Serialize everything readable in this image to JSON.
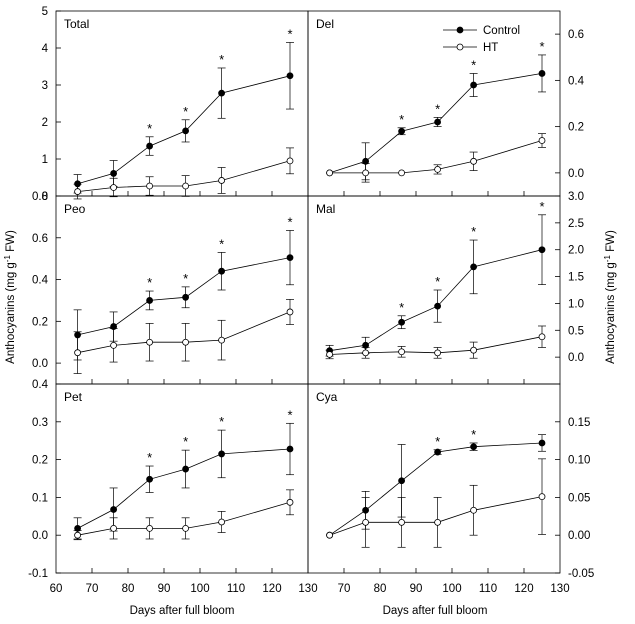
{
  "chart_data": {
    "type": "line",
    "layout": "3x2",
    "xlabel": "Days after full bloom",
    "ylabel_left": "Anthocyanins (mg g-1 FW)",
    "ylabel_right": "Anthocyanins (mg g-1 FW)",
    "ylabel_parts": {
      "main": "Anthocyanins (mg g",
      "sup": "-1",
      "end": " FW)"
    },
    "xlim": [
      60,
      130
    ],
    "xticks": [
      60,
      70,
      80,
      90,
      100,
      110,
      120,
      130
    ],
    "legend": {
      "placement": "top-right of Del panel",
      "entries": [
        {
          "name": "Control",
          "marker": "filled-circle"
        },
        {
          "name": "HT",
          "marker": "open-circle"
        }
      ]
    },
    "x": [
      66,
      76,
      86,
      96,
      106,
      125
    ],
    "panels": [
      {
        "title": "Total",
        "row": 0,
        "col": 0,
        "axis": "left",
        "ylim": [
          0,
          5
        ],
        "yticks": [
          0,
          1,
          2,
          3,
          4,
          5
        ],
        "series": [
          {
            "name": "Control",
            "values": [
              0.33,
              0.61,
              1.35,
              1.76,
              2.78,
              3.25
            ],
            "err": [
              0.25,
              0.35,
              0.25,
              0.3,
              0.68,
              0.9
            ]
          },
          {
            "name": "HT",
            "values": [
              0.12,
              0.23,
              0.27,
              0.27,
              0.42,
              0.95
            ],
            "err": [
              0.2,
              0.25,
              0.25,
              0.28,
              0.35,
              0.35
            ]
          }
        ],
        "significant_x": [
          86,
          96,
          106,
          125
        ]
      },
      {
        "title": "Del",
        "row": 0,
        "col": 1,
        "axis": "right",
        "ylim": [
          -0.1,
          0.7
        ],
        "yticks": [
          0.0,
          0.2,
          0.4,
          0.6
        ],
        "series": [
          {
            "name": "Control",
            "values": [
              0.0,
              0.05,
              0.18,
              0.22,
              0.38,
              0.43
            ],
            "err": [
              0.0,
              0.08,
              0.015,
              0.02,
              0.05,
              0.08
            ]
          },
          {
            "name": "HT",
            "values": [
              0.0,
              0.0,
              0.0,
              0.015,
              0.05,
              0.14
            ],
            "err": [
              0.0,
              0.04,
              0.0,
              0.02,
              0.04,
              0.03
            ]
          }
        ],
        "significant_x": [
          86,
          96,
          106,
          125
        ]
      },
      {
        "title": "Peo",
        "row": 1,
        "col": 0,
        "axis": "left",
        "ylim": [
          -0.1,
          0.8
        ],
        "yticks": [
          0.0,
          0.2,
          0.4,
          0.6,
          0.8
        ],
        "series": [
          {
            "name": "Control",
            "values": [
              0.135,
              0.175,
              0.3,
              0.315,
              0.44,
              0.505
            ],
            "err": [
              0.12,
              0.07,
              0.045,
              0.05,
              0.09,
              0.13
            ]
          },
          {
            "name": "HT",
            "values": [
              0.05,
              0.085,
              0.1,
              0.1,
              0.11,
              0.245
            ],
            "err": [
              0.1,
              0.08,
              0.09,
              0.09,
              0.095,
              0.06
            ]
          }
        ],
        "significant_x": [
          86,
          96,
          106,
          125
        ]
      },
      {
        "title": "Mal",
        "row": 1,
        "col": 1,
        "axis": "right",
        "ylim": [
          -0.5,
          3.0
        ],
        "yticks": [
          0.0,
          0.5,
          1.0,
          1.5,
          2.0,
          2.5,
          3.0
        ],
        "series": [
          {
            "name": "Control",
            "values": [
              0.12,
              0.22,
              0.65,
              0.95,
              1.68,
              2.0
            ],
            "err": [
              0.1,
              0.15,
              0.12,
              0.3,
              0.5,
              0.65
            ]
          },
          {
            "name": "HT",
            "values": [
              0.05,
              0.08,
              0.1,
              0.08,
              0.13,
              0.38
            ],
            "err": [
              0.08,
              0.1,
              0.1,
              0.1,
              0.15,
              0.2
            ]
          }
        ],
        "significant_x": [
          86,
          96,
          106,
          125
        ]
      },
      {
        "title": "Pet",
        "row": 2,
        "col": 0,
        "axis": "left",
        "ylim": [
          -0.1,
          0.4
        ],
        "yticks": [
          -0.1,
          0.0,
          0.1,
          0.2,
          0.3,
          0.4
        ],
        "series": [
          {
            "name": "Control",
            "values": [
              0.018,
              0.068,
              0.148,
              0.175,
              0.215,
              0.228
            ],
            "err": [
              0.028,
              0.057,
              0.035,
              0.05,
              0.063,
              0.068
            ]
          },
          {
            "name": "HT",
            "values": [
              0.0,
              0.018,
              0.018,
              0.018,
              0.035,
              0.087
            ],
            "err": [
              0.012,
              0.028,
              0.028,
              0.028,
              0.028,
              0.033
            ]
          }
        ],
        "significant_x": [
          86,
          96,
          106,
          125
        ]
      },
      {
        "title": "Cya",
        "row": 2,
        "col": 1,
        "axis": "right",
        "ylim": [
          -0.05,
          0.2
        ],
        "yticks": [
          -0.05,
          0.0,
          0.05,
          0.1,
          0.15
        ],
        "series": [
          {
            "name": "Control",
            "values": [
              0.0,
              0.033,
              0.072,
              0.11,
              0.117,
              0.122
            ],
            "err": [
              0.0,
              0.025,
              0.048,
              0.003,
              0.005,
              0.011
            ]
          },
          {
            "name": "HT",
            "values": [
              0.0,
              0.017,
              0.017,
              0.017,
              0.033,
              0.051
            ],
            "err": [
              0.0,
              0.033,
              0.033,
              0.033,
              0.033,
              0.05
            ]
          }
        ],
        "significant_x": [
          96,
          106
        ]
      }
    ]
  }
}
